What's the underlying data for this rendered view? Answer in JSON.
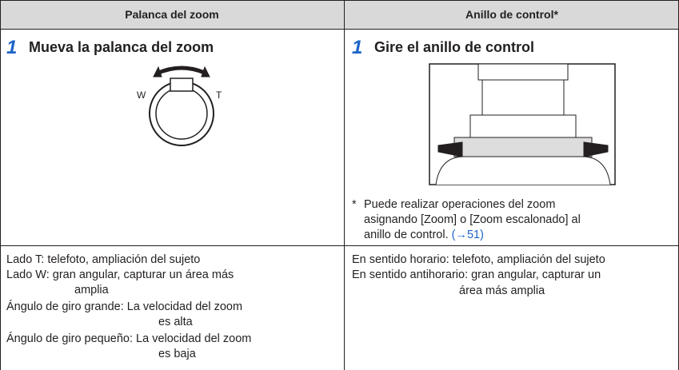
{
  "header": {
    "left": "Palanca del zoom",
    "right": "Anillo de control*"
  },
  "left_step": {
    "number": "1",
    "title": "Mueva la palanca del zoom",
    "labels": {
      "w": "W",
      "t": "T"
    }
  },
  "right_step": {
    "number": "1",
    "title": "Gire el anillo de control",
    "note": {
      "marker": "*",
      "lines": [
        "Puede realizar operaciones del zoom",
        "asignando [Zoom] o [Zoom escalonado] al",
        "anillo de control."
      ],
      "link": "(→51)"
    }
  },
  "left_desc": {
    "lines": [
      "Lado T: telefoto, ampliación del sujeto",
      "Lado W: gran angular, capturar un área más",
      "amplia",
      "Ángulo de giro grande: La velocidad del zoom",
      "es alta",
      "Ángulo de giro pequeño: La velocidad del zoom",
      "es baja"
    ]
  },
  "right_desc": {
    "lines": [
      "En sentido horario: telefoto, ampliación del sujeto",
      "En sentido antihorario: gran angular, capturar un",
      "área más amplia"
    ]
  }
}
